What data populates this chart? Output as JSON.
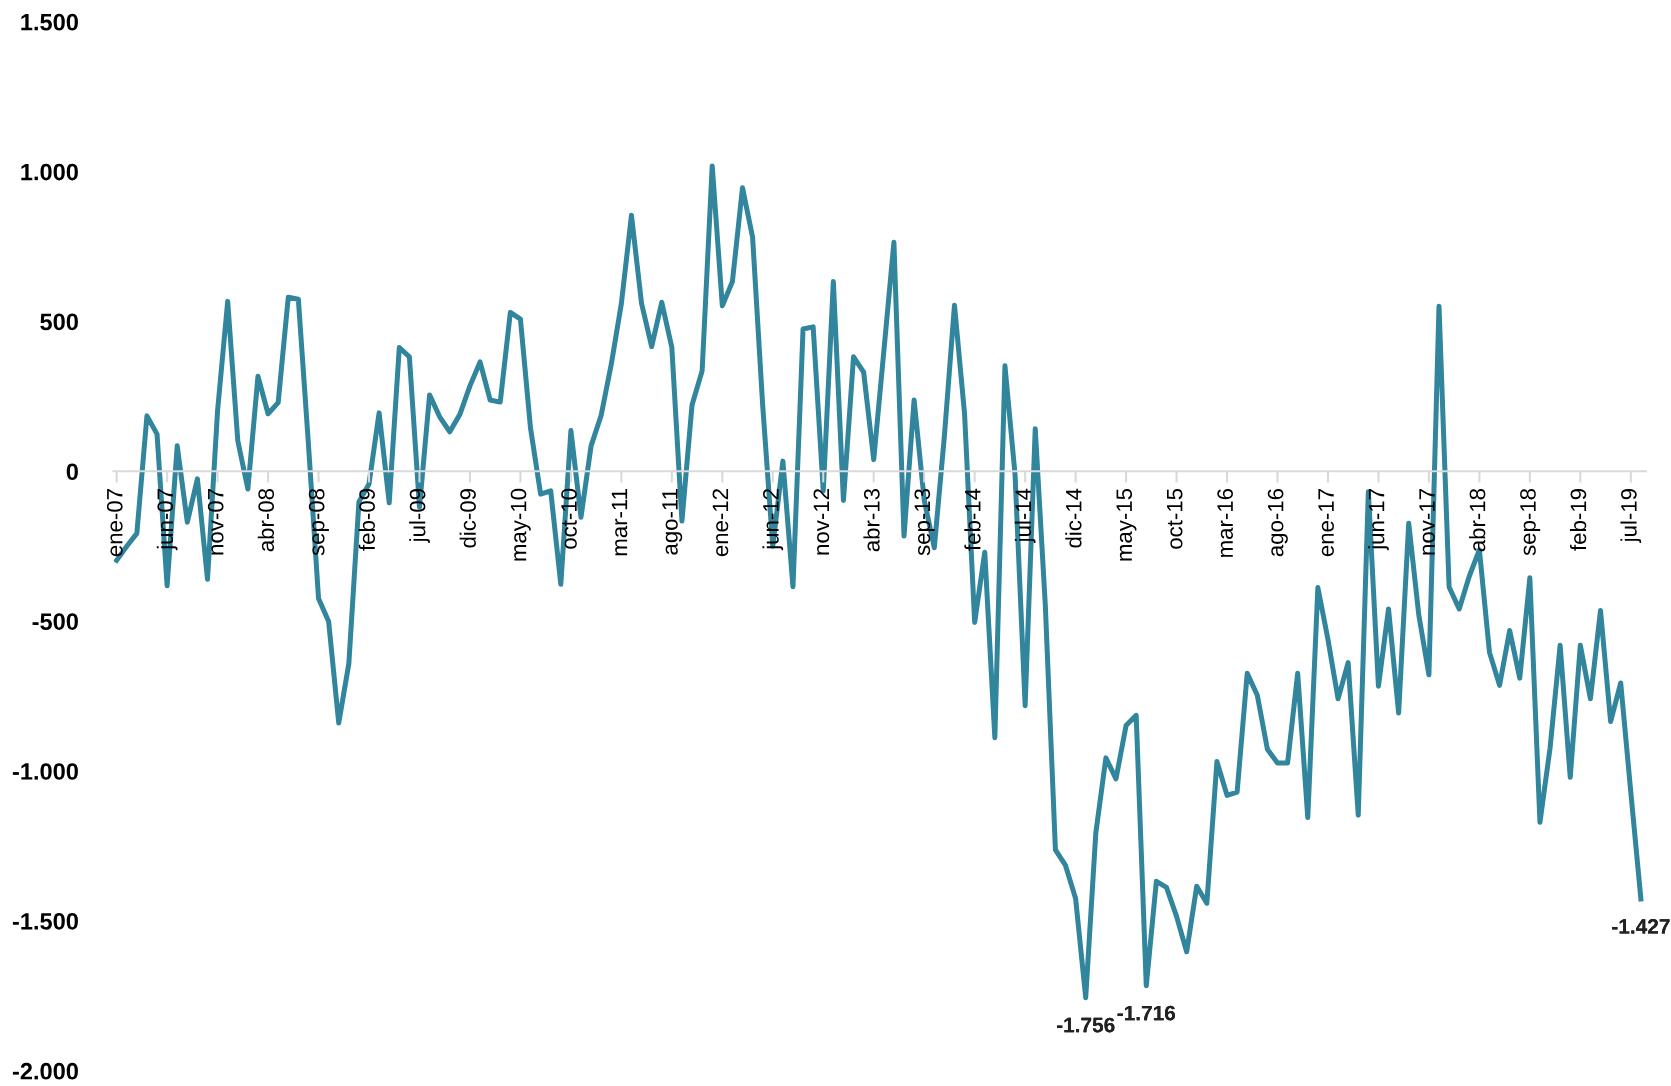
{
  "chart_data": {
    "type": "line",
    "categories": [
      "ene-07",
      null,
      null,
      null,
      null,
      "jun-07",
      null,
      null,
      null,
      null,
      "nov-07",
      null,
      null,
      null,
      null,
      "abr-08",
      null,
      null,
      null,
      null,
      "sep-08",
      null,
      null,
      null,
      null,
      "feb-09",
      null,
      null,
      null,
      null,
      "jul-09",
      null,
      null,
      null,
      null,
      "dic-09",
      null,
      null,
      null,
      null,
      "may-10",
      null,
      null,
      null,
      null,
      "oct-10",
      null,
      null,
      null,
      null,
      "mar-11",
      null,
      null,
      null,
      null,
      "ago-11",
      null,
      null,
      null,
      null,
      "ene-12",
      null,
      null,
      null,
      null,
      "jun-12",
      null,
      null,
      null,
      null,
      "nov-12",
      null,
      null,
      null,
      null,
      "abr-13",
      null,
      null,
      null,
      null,
      "sep-13",
      null,
      null,
      null,
      null,
      "feb-14",
      null,
      null,
      null,
      null,
      "jul-14",
      null,
      null,
      null,
      null,
      "dic-14",
      null,
      null,
      null,
      null,
      "may-15",
      null,
      null,
      null,
      null,
      "oct-15",
      null,
      null,
      null,
      null,
      "mar-16",
      null,
      null,
      null,
      null,
      "ago-16",
      null,
      null,
      null,
      null,
      "ene-17",
      null,
      null,
      null,
      null,
      "jun-17",
      null,
      null,
      null,
      null,
      "nov-17",
      null,
      null,
      null,
      null,
      "abr-18",
      null,
      null,
      null,
      null,
      "sep-18",
      null,
      null,
      null,
      null,
      "feb-19",
      null,
      null,
      null,
      null,
      "jul-19",
      null
    ],
    "series": [
      {
        "color": "#31859c",
        "values": [
          -297,
          -250,
          -207,
          185,
          124,
          -382,
          85,
          -170,
          -25,
          -360,
          204,
          567,
          102,
          -59,
          317,
          192,
          229,
          581,
          574,
          90,
          -424,
          -501,
          -840,
          -642,
          -102,
          -42,
          195,
          -105,
          413,
          382,
          -119,
          255,
          182,
          132,
          190,
          285,
          365,
          238,
          231,
          530,
          508,
          144,
          -76,
          -65,
          -377,
          136,
          -153,
          85,
          187,
          357,
          560,
          854,
          560,
          416,
          564,
          413,
          -166,
          221,
          335,
          1019,
          552,
          633,
          946,
          781,
          220,
          -250,
          34,
          -385,
          475,
          482,
          -65,
          633,
          -97,
          382,
          331,
          39,
          400,
          764,
          -216,
          238,
          -96,
          -255,
          117,
          554,
          191,
          -504,
          -270,
          -889,
          352,
          -11,
          -782,
          142,
          -447,
          -1263,
          -1315,
          -1425,
          -1756,
          -1207,
          -956,
          -1026,
          -848,
          -814,
          -1716,
          -1368,
          -1388,
          -1485,
          -1603,
          -1384,
          -1441,
          -968,
          -1081,
          -1070,
          -674,
          -747,
          -927,
          -973,
          -973,
          -674,
          -1155,
          -388,
          -561,
          -759,
          -638,
          -1147,
          -68,
          -717,
          -459,
          -806,
          -173,
          -480,
          -679,
          551,
          -386,
          -459,
          -350,
          -262,
          -604,
          -714,
          -531,
          -690,
          -355,
          -1171,
          -924,
          -580,
          -1021,
          -580,
          -759,
          -464,
          -835,
          -706,
          -1070,
          -1427
        ],
        "value_labels": [
          null,
          null,
          null,
          null,
          null,
          null,
          null,
          null,
          null,
          null,
          null,
          null,
          null,
          null,
          null,
          null,
          null,
          null,
          null,
          null,
          null,
          null,
          null,
          null,
          null,
          null,
          null,
          null,
          null,
          null,
          null,
          null,
          null,
          null,
          null,
          null,
          null,
          null,
          null,
          null,
          null,
          null,
          null,
          null,
          null,
          null,
          null,
          null,
          null,
          null,
          null,
          null,
          null,
          null,
          null,
          null,
          null,
          null,
          null,
          null,
          null,
          null,
          null,
          null,
          null,
          null,
          null,
          null,
          null,
          null,
          null,
          null,
          null,
          null,
          null,
          null,
          null,
          null,
          null,
          null,
          null,
          null,
          null,
          null,
          null,
          null,
          null,
          null,
          null,
          null,
          null,
          null,
          null,
          null,
          null,
          null,
          "-1.756",
          null,
          null,
          null,
          null,
          null,
          "-1.716",
          null,
          null,
          null,
          null,
          null,
          null,
          null,
          null,
          null,
          null,
          null,
          null,
          null,
          null,
          null,
          null,
          null,
          null,
          null,
          null,
          null,
          null,
          null,
          null,
          null,
          null,
          null,
          null,
          null,
          null,
          null,
          null,
          null,
          null,
          null,
          null,
          null,
          null,
          null,
          null,
          null,
          null,
          null,
          null,
          null,
          null,
          null,
          null,
          "-1.427"
        ]
      }
    ],
    "ylim": [
      -2000,
      1500
    ],
    "yticks": [
      {
        "value": -2000,
        "label": "-2.000"
      },
      {
        "value": -1500,
        "label": "-1.500"
      },
      {
        "value": -1000,
        "label": "-1.000"
      },
      -500,
      0,
      500,
      {
        "value": 1000,
        "label": "1.000"
      },
      {
        "value": 1500,
        "label": "1.500"
      }
    ],
    "grid": false,
    "legend": false,
    "marker": "none",
    "line_style": "solid"
  }
}
